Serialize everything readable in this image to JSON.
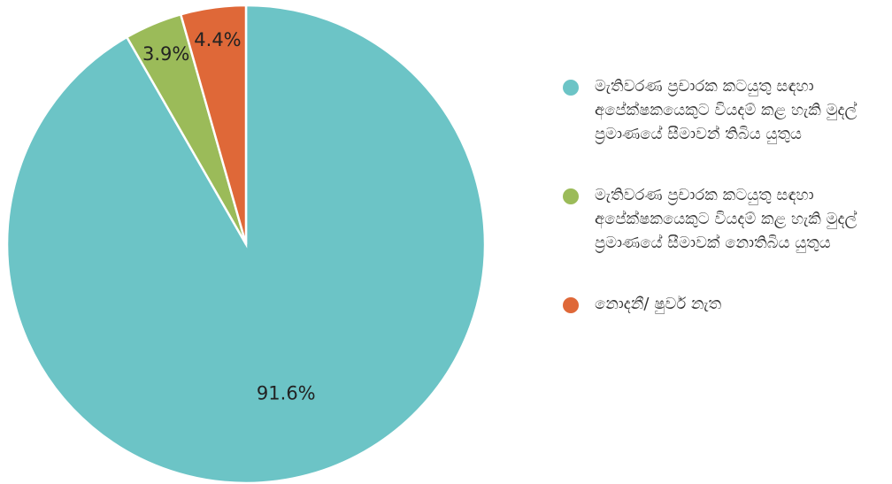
{
  "chart_data": {
    "type": "pie",
    "categories": [
      "මැතිවරණ ප්‍රචාරක කටයුතු සඳහා අපේක්ෂකයෙකුට වියදම් කළ හැකි මුදල් ප්‍රමාණයේ සීමාවන් තිබිය යුතුය",
      "මැතිවරණ ප්‍රචාරක කටයුතු සඳහා අපේක්ෂකයෙකුට වියදම් කළ හැකි මුදල් ප්‍රමාණයේ සීමාවක් නොතිබිය යුතුය",
      "නොදනී/ ෂුවර් නැත"
    ],
    "values": [
      91.6,
      3.9,
      4.4
    ],
    "value_labels": [
      "91.6%",
      "3.9%",
      "4.4%"
    ],
    "colors": [
      "#6cc4c6",
      "#9bbb59",
      "#df6838"
    ],
    "legend": "right"
  }
}
